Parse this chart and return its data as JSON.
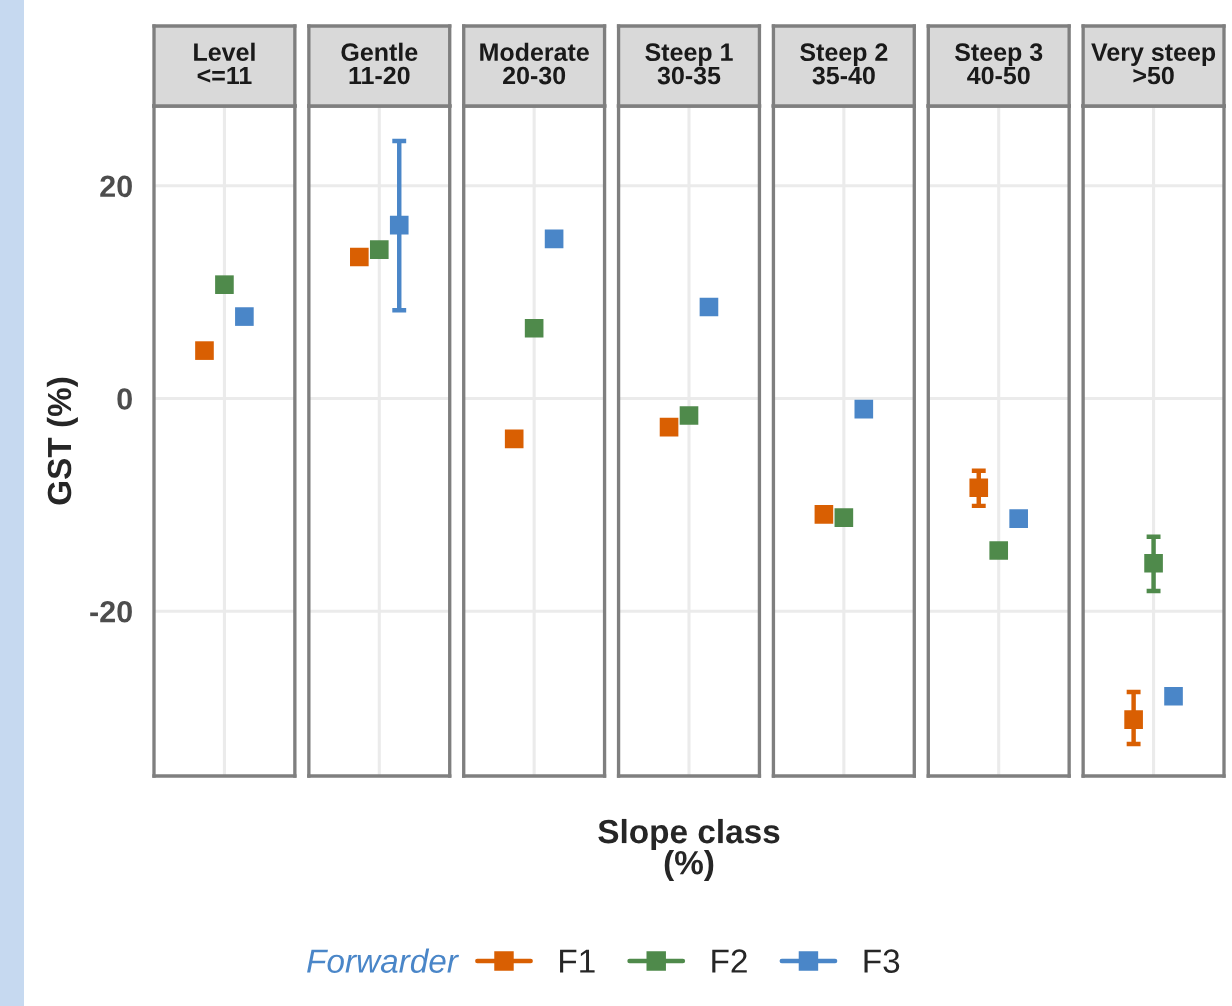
{
  "chart_data": {
    "type": "scatter",
    "ylabel": "GST (%)",
    "xlabel": "Slope class\n(%)",
    "legend": "bottom",
    "legend_title": "Forwarder",
    "categories": [
      "Level\n<=11",
      "Gentle\n11-20",
      "Moderate\n20-30",
      "Steep 1\n30-35",
      "Steep 2\n35-40",
      "Steep 3\n40-50",
      "Very steep\n>50"
    ],
    "ylim": [
      -35.5,
      27.5
    ],
    "yticks": [
      -20,
      0,
      20
    ],
    "grid": true,
    "marker": "square",
    "series": [
      {
        "name": "F1",
        "color": "#d95f02",
        "values": [
          4.5,
          13.3,
          -3.8,
          -2.7,
          -10.9,
          -8.4,
          -30.2
        ],
        "errors": [
          null,
          null,
          null,
          null,
          null,
          [
            -10.1,
            -6.8
          ],
          [
            -32.5,
            -27.6
          ]
        ]
      },
      {
        "name": "F2",
        "color": "#4f8a4b",
        "values": [
          10.7,
          14.0,
          6.6,
          -1.6,
          -11.2,
          -14.3,
          -15.5
        ],
        "errors": [
          null,
          null,
          null,
          null,
          null,
          null,
          [
            -18.1,
            -13.0
          ]
        ]
      },
      {
        "name": "F3",
        "color": "#4a86c8",
        "values": [
          7.7,
          16.3,
          15.0,
          8.6,
          -1.0,
          -11.3,
          -28.0
        ],
        "errors": [
          null,
          [
            8.3,
            24.2
          ],
          null,
          null,
          null,
          null,
          null
        ]
      }
    ]
  }
}
